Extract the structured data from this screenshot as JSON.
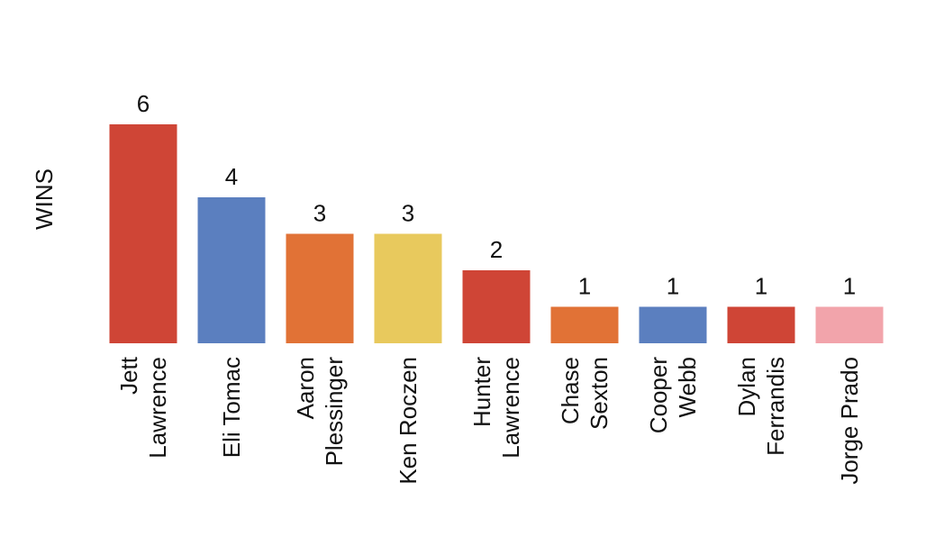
{
  "chart_data": {
    "type": "bar",
    "ylabel": "WINS",
    "ylim": [
      0,
      6
    ],
    "grid": false,
    "legend": "none",
    "categories": [
      [
        "Jett",
        "Lawrence"
      ],
      [
        "Eli Tomac"
      ],
      [
        "Aaron",
        "Plessinger"
      ],
      [
        "Ken Roczen"
      ],
      [
        "Hunter",
        "Lawrence"
      ],
      [
        "Chase",
        "Sexton"
      ],
      [
        "Cooper",
        "Webb"
      ],
      [
        "Dylan",
        "Ferrandis"
      ],
      [
        "Jorge Prado"
      ]
    ],
    "values": [
      6,
      4,
      3,
      3,
      2,
      1,
      1,
      1,
      1
    ],
    "colors": [
      "#cf4536",
      "#5b7fbf",
      "#e17236",
      "#e8c95d",
      "#cf4536",
      "#e17236",
      "#5b7fbf",
      "#cf4536",
      "#f2a4ab"
    ]
  }
}
